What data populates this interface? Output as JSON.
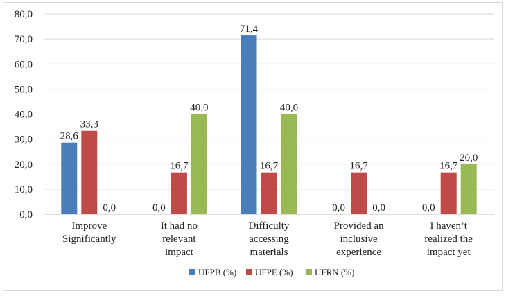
{
  "chart_data": {
    "type": "bar",
    "title": "",
    "xlabel": "",
    "ylabel": "",
    "ylim": [
      0,
      80
    ],
    "yticks": [
      "0,0",
      "10,0",
      "20,0",
      "30,0",
      "40,0",
      "50,0",
      "60,0",
      "70,0",
      "80,0"
    ],
    "grid": true,
    "legend_position": "bottom",
    "categories": [
      [
        "Improve",
        "Significantly"
      ],
      [
        "It had no",
        "relevant",
        "impact"
      ],
      [
        "Difficulty",
        "accessing",
        "materials"
      ],
      [
        "Provided an",
        "inclusive",
        "experience"
      ],
      [
        "I haven’t",
        "realized the",
        "impact yet"
      ]
    ],
    "series": [
      {
        "name": "UFPB (%)",
        "color": "#4a7ebb",
        "values": [
          28.6,
          0.0,
          71.4,
          0.0,
          0.0
        ],
        "labels": [
          "28,6",
          "0,0",
          "71,4",
          "0,0",
          "0,0"
        ]
      },
      {
        "name": "UFPE (%)",
        "color": "#be4b48",
        "values": [
          33.3,
          16.7,
          16.7,
          16.7,
          16.7
        ],
        "labels": [
          "33,3",
          "16,7",
          "16,7",
          "16,7",
          "16,7"
        ]
      },
      {
        "name": "UFRN (%)",
        "color": "#98b954",
        "values": [
          0.0,
          40.0,
          40.0,
          0.0,
          20.0
        ],
        "labels": [
          "0,0",
          "40,0",
          "40,0",
          "0,0",
          "20,0"
        ]
      }
    ]
  }
}
